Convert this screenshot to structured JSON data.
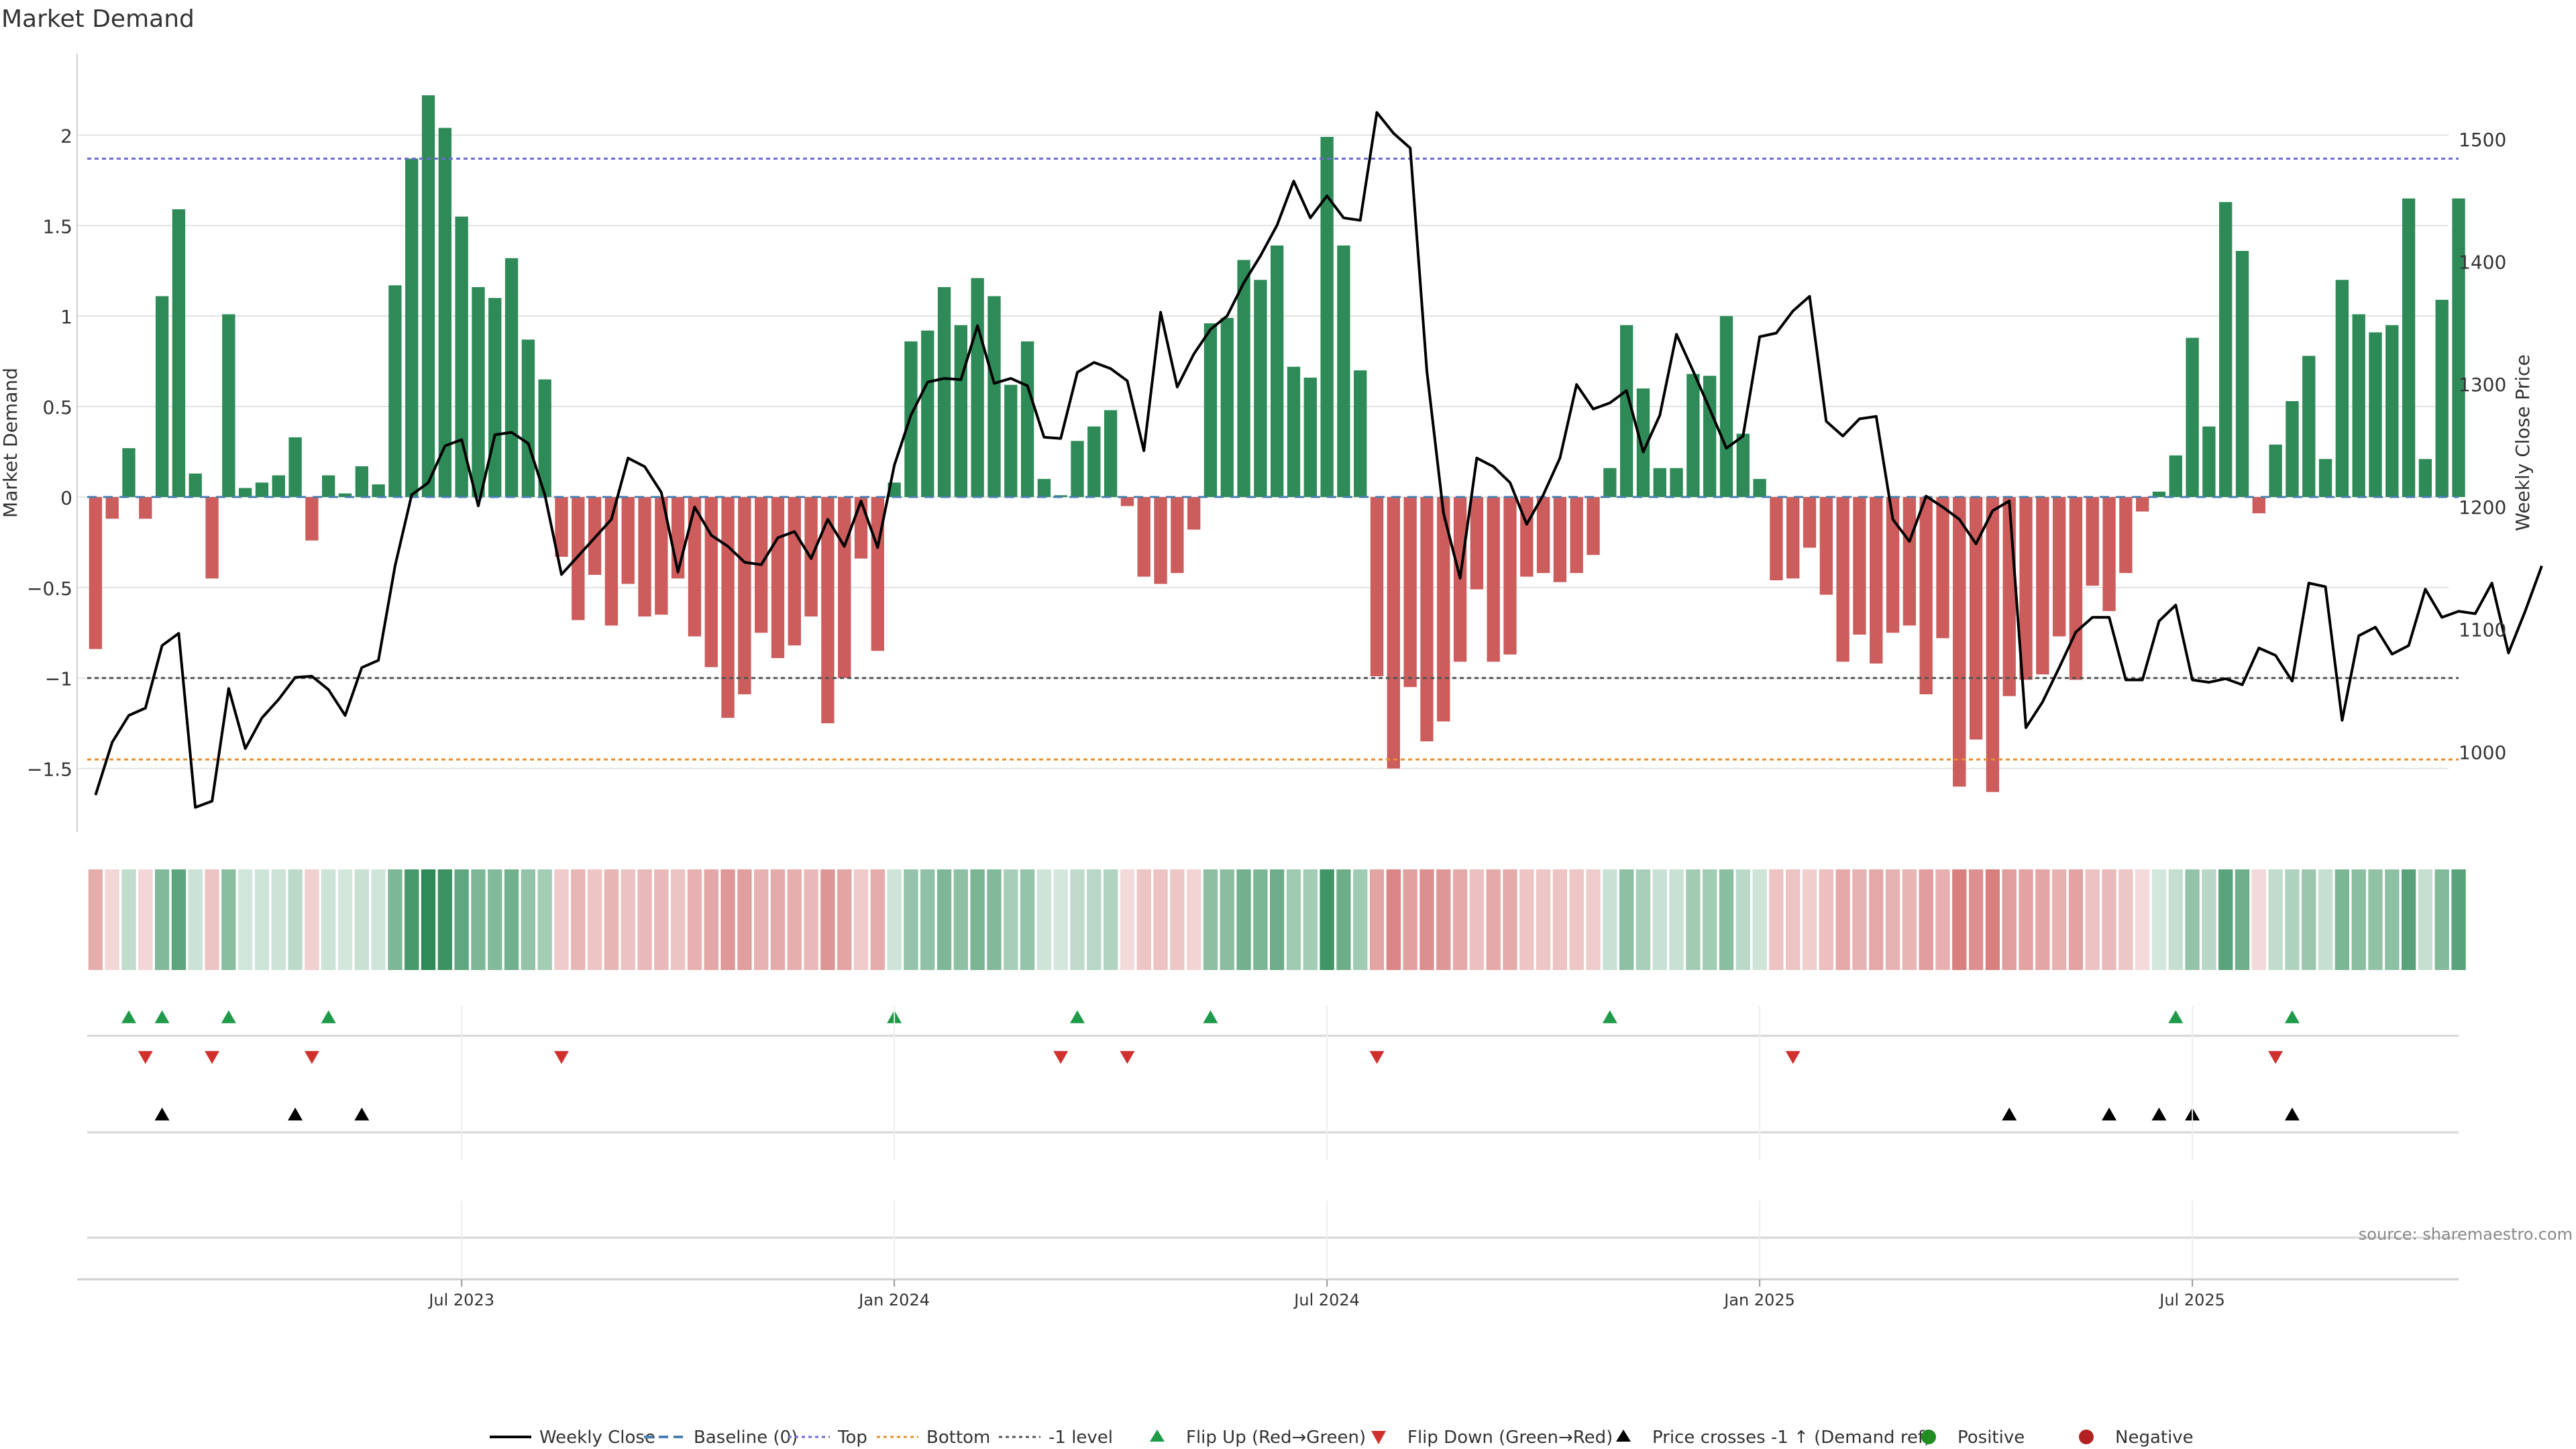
{
  "colors": {
    "positive": "#2e8b57",
    "negative": "#cd5c5c",
    "price": "#000000",
    "top": "#6b6bcf",
    "bottom": "#e6902e",
    "minus_one": "#555555",
    "baseline": "#4a7fb0",
    "flip_up": "#1f9a49",
    "flip_down": "#d0312d",
    "cross": "#000000",
    "grid": "#e3e3e3",
    "source_text": "#888888",
    "legend_positive": "#228b22",
    "legend_negative": "#b22222"
  },
  "chart_data": {
    "type": "bar",
    "title": "Market Demand",
    "ylabel": "Market Demand",
    "y2label": "Weekly Close Price",
    "ylim": [
      -1.85,
      2.45
    ],
    "y2lim": [
      935,
      1570
    ],
    "yticks": [
      -1.5,
      -1,
      -0.5,
      0,
      0.5,
      1,
      1.5,
      2
    ],
    "ytick_labels": [
      "−1.5",
      "−1",
      "−0.5",
      "0",
      "0.5",
      "1",
      "1.5",
      "2"
    ],
    "y2ticks": [
      1000,
      1100,
      1200,
      1300,
      1400,
      1500
    ],
    "y2tick_labels": [
      "1000",
      "1100",
      "1200",
      "1300",
      "1400",
      "1500"
    ],
    "x_ticks": [
      {
        "index": 22,
        "label": "Jul 2023"
      },
      {
        "index": 48,
        "label": "Jan 2024"
      },
      {
        "index": 74,
        "label": "Jul 2024"
      },
      {
        "index": 100,
        "label": "Jan 2025"
      },
      {
        "index": 126,
        "label": "Jul 2025"
      }
    ],
    "levels": {
      "top": 1.87,
      "bottom": -1.45,
      "minus_one": -1.0,
      "baseline": 0
    },
    "demand": [
      -0.84,
      -0.12,
      0.27,
      -0.12,
      1.11,
      1.59,
      0.13,
      -0.45,
      1.01,
      0.05,
      0.08,
      0.12,
      0.33,
      -0.24,
      0.12,
      0.02,
      0.17,
      0.07,
      1.17,
      1.87,
      2.22,
      2.04,
      1.55,
      1.16,
      1.1,
      1.32,
      0.87,
      0.65,
      -0.33,
      -0.68,
      -0.43,
      -0.71,
      -0.48,
      -0.66,
      -0.65,
      -0.45,
      -0.77,
      -0.94,
      -1.22,
      -1.09,
      -0.75,
      -0.89,
      -0.82,
      -0.66,
      -1.25,
      -1.0,
      -0.34,
      -0.85,
      0.08,
      0.86,
      0.92,
      1.16,
      0.95,
      1.21,
      1.11,
      0.62,
      0.86,
      0.1,
      0.01,
      0.31,
      0.39,
      0.48,
      -0.05,
      -0.44,
      -0.48,
      -0.42,
      -0.18,
      0.96,
      0.99,
      1.31,
      1.2,
      1.39,
      0.72,
      0.66,
      1.99,
      1.39,
      0.7,
      -0.99,
      -1.5,
      -1.05,
      -1.35,
      -1.24,
      -0.91,
      -0.51,
      -0.91,
      -0.87,
      -0.44,
      -0.42,
      -0.47,
      -0.42,
      -0.32,
      0.16,
      0.95,
      0.6,
      0.16,
      0.16,
      0.68,
      0.67,
      1.0,
      0.35,
      0.1,
      -0.46,
      -0.45,
      -0.28,
      -0.54,
      -0.91,
      -0.76,
      -0.92,
      -0.75,
      -0.71,
      -1.09,
      -0.78,
      -1.6,
      -1.34,
      -1.63,
      -1.1,
      -1.01,
      -0.98,
      -0.77,
      -1.01,
      -0.49,
      -0.63,
      -0.42,
      -0.08,
      0.03,
      0.23,
      0.88,
      0.39,
      1.63,
      1.36,
      -0.09,
      0.29,
      0.53,
      0.78,
      0.21,
      1.2,
      1.01,
      0.91,
      0.95,
      1.65,
      0.21,
      1.09,
      1.65
    ],
    "price": [
      965,
      1008,
      1030,
      1036,
      1087,
      1097,
      955,
      960,
      1052,
      1003,
      1028,
      1043,
      1061,
      1062,
      1051,
      1030,
      1069,
      1075,
      1152,
      1210,
      1220,
      1250,
      1255,
      1201,
      1259,
      1261,
      1252,
      1210,
      1145,
      1160,
      1175,
      1190,
      1240,
      1233,
      1212,
      1147,
      1200,
      1177,
      1168,
      1155,
      1153,
      1175,
      1180,
      1158,
      1190,
      1168,
      1205,
      1167,
      1234,
      1275,
      1302,
      1305,
      1304,
      1348,
      1301,
      1305,
      1299,
      1257,
      1256,
      1310,
      1318,
      1313,
      1303,
      1246,
      1359,
      1298,
      1325,
      1345,
      1356,
      1383,
      1405,
      1430,
      1466,
      1436,
      1454,
      1436,
      1434,
      1522,
      1505,
      1493,
      1311,
      1195,
      1142,
      1240,
      1233,
      1220,
      1186,
      1210,
      1240,
      1300,
      1280,
      1285,
      1295,
      1245,
      1275,
      1341,
      1311,
      1280,
      1248,
      1258,
      1339,
      1342,
      1360,
      1372,
      1270,
      1258,
      1272,
      1274,
      1190,
      1172,
      1209,
      1200,
      1190,
      1170,
      1197,
      1205,
      1020,
      1041,
      1069,
      1098,
      1110,
      1110,
      1059,
      1059,
      1107,
      1120,
      1059,
      1057,
      1060,
      1055,
      1085,
      1079,
      1058,
      1138,
      1135,
      1026,
      1095,
      1102,
      1080,
      1087,
      1133,
      1110,
      1115,
      1113,
      1138,
      1081,
      1115,
      1152
    ],
    "heat_strip": {
      "values_note": "same as demand"
    },
    "flip_up_indices": [
      2,
      4,
      8,
      14,
      48,
      59,
      67,
      91,
      125,
      132
    ],
    "flip_down_indices": [
      3,
      7,
      13,
      28,
      58,
      62,
      77,
      102,
      131
    ],
    "cross_indices": [
      4,
      12,
      16,
      115,
      121,
      124,
      126,
      132
    ],
    "legend": [
      "Weekly Close",
      "Baseline (0)",
      "Top",
      "Bottom",
      "-1 level",
      "Flip Up (Red→Green)",
      "Flip Down (Green→Red)",
      "Price crosses -1 ↑ (Demand ref)",
      "Positive",
      "Negative"
    ],
    "source": "source: sharemaestro.com"
  }
}
